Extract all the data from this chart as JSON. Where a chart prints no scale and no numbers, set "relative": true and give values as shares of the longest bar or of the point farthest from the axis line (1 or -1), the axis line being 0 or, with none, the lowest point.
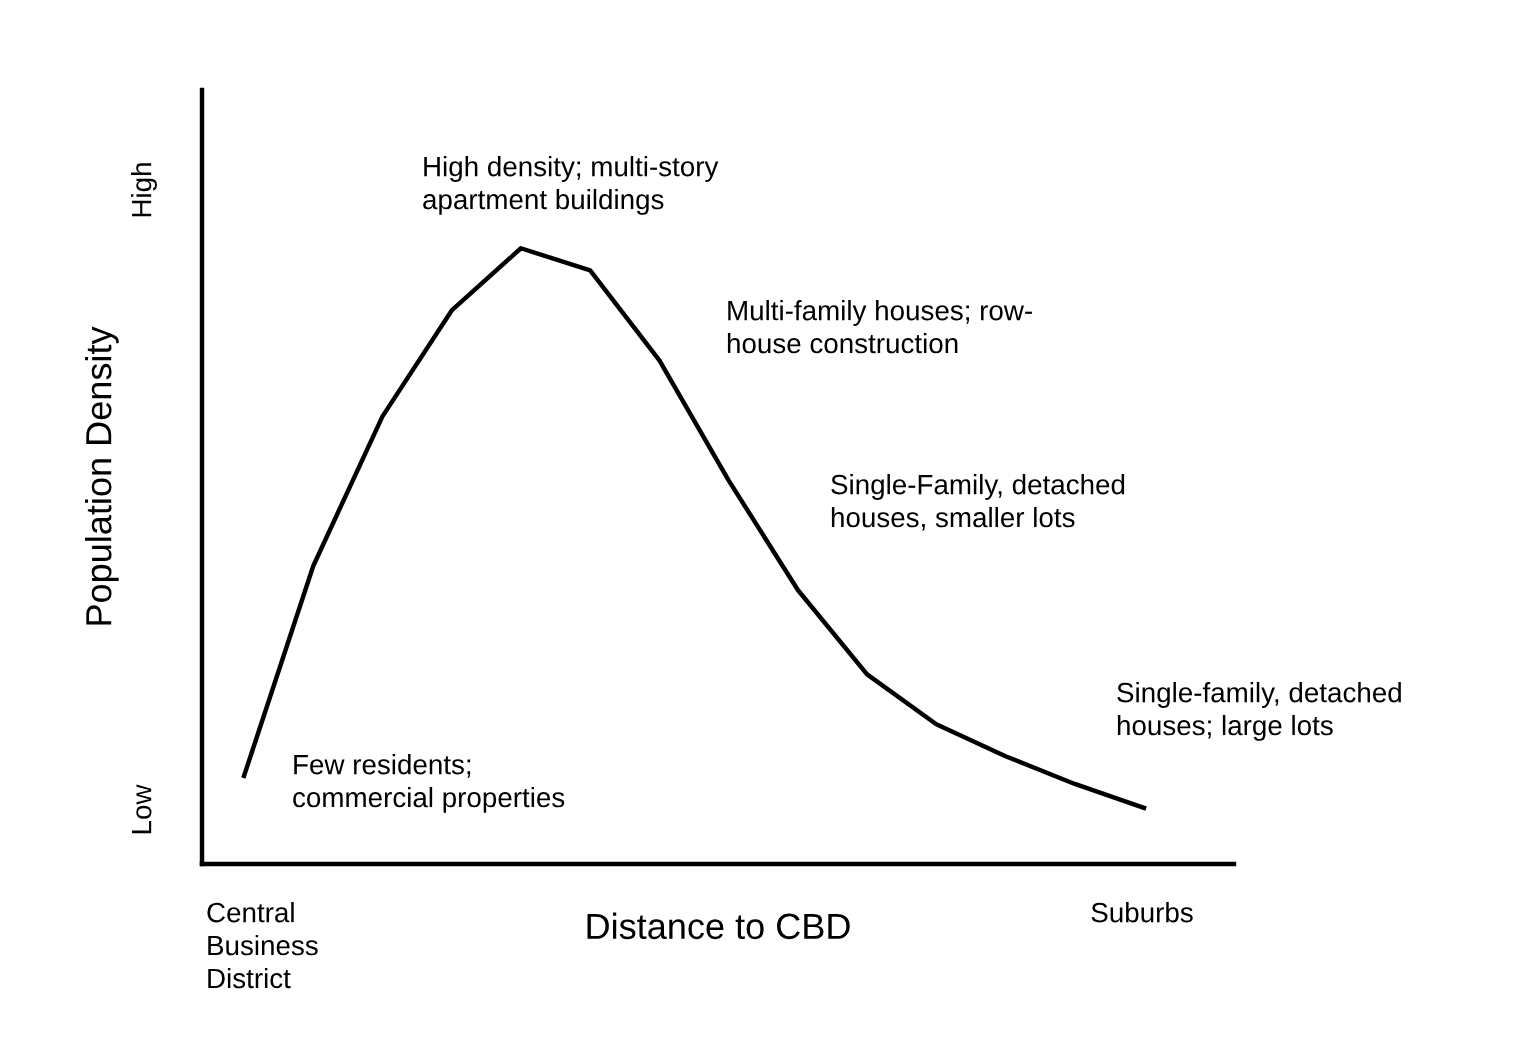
{
  "chart_data": {
    "type": "line",
    "relative": true,
    "xlabel": "Distance to CBD",
    "ylabel": "Population Density",
    "categories": [
      null,
      null,
      null,
      null,
      null,
      null,
      null,
      null,
      null,
      null,
      null,
      null,
      null,
      null
    ],
    "series": [
      {
        "color": "#000000",
        "values": [
          0.143,
          0.484,
          0.727,
          0.899,
          1.0,
          0.964,
          0.818,
          0.623,
          0.445,
          0.308,
          0.227,
          0.175,
          0.13,
          0.091
        ]
      }
    ],
    "grid": false,
    "legend": false,
    "marker": "none",
    "line_style": "solid",
    "annotations": [
      "High density; multi-story\napartment buildings",
      "Multi-family houses; row-\nhouse construction",
      "Single-Family, detached\nhouses, smaller lots",
      "Single-family, detached\nhouses; large lots",
      "Few residents;\ncommercial properties",
      "High",
      "Low",
      "Central\nBusiness\nDistrict",
      "Suburbs"
    ]
  }
}
